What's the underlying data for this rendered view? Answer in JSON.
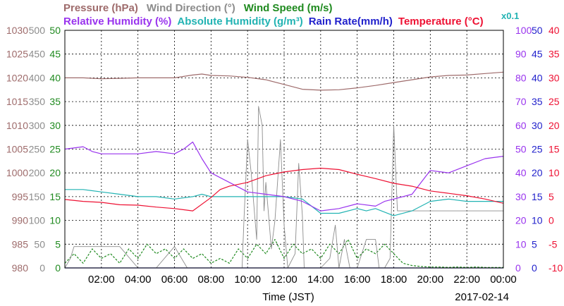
{
  "chart_data": {
    "type": "line",
    "date_label": "2017-02-14",
    "xlabel": "Time (JST)",
    "x_ticks": [
      "02:00",
      "04:00",
      "06:00",
      "08:00",
      "10:00",
      "12:00",
      "14:00",
      "16:00",
      "18:00",
      "20:00",
      "22:00",
      "00:00"
    ],
    "x_range_hours": [
      0,
      24
    ],
    "grid": true,
    "legend": {
      "row1": [
        {
          "text": "Pressure (hPa)",
          "color": "#9e6b6b"
        },
        {
          "text": "Wind Direction (°)",
          "color": "#8c8c8c"
        },
        {
          "text": "Wind Speed (m/s)",
          "color": "#1f8a1f"
        }
      ],
      "row2": [
        {
          "text": "Relative Humidity (%)",
          "color": "#9933ee"
        },
        {
          "text": "Absolute Humidity (g/m³)",
          "color": "#22b3b3"
        },
        {
          "text": "Rain Rate(mm/h)",
          "color": "#2222cc"
        },
        {
          "text": "Temperature (°C)",
          "color": "#ee1133"
        },
        {
          "text": "x0.1",
          "color": "#22b3b3"
        }
      ]
    },
    "axes": {
      "pressure": {
        "ticks": [
          "980",
          "985",
          "990",
          "995",
          "1000",
          "1005",
          "1010",
          "1015",
          "1020",
          "1025",
          "1030"
        ],
        "range": [
          980,
          1030
        ],
        "color": "#9e6b6b"
      },
      "wind_direction": {
        "ticks": [
          "0",
          "50",
          "100",
          "150",
          "200",
          "250",
          "300",
          "350",
          "400",
          "450",
          "500"
        ],
        "range": [
          0,
          500
        ],
        "color": "#8c8c8c"
      },
      "wind_speed": {
        "ticks": [
          "0",
          "5",
          "10",
          "15",
          "20",
          "25",
          "30",
          "35",
          "40",
          "45",
          "50"
        ],
        "range": [
          0,
          50
        ],
        "color": "#1f8a1f"
      },
      "humidity": {
        "ticks": [
          "0",
          "10",
          "20",
          "30",
          "40",
          "50",
          "60",
          "70",
          "80",
          "90",
          "100"
        ],
        "range": [
          0,
          100
        ],
        "color": "#9933ee"
      },
      "rain_rate": {
        "ticks": [
          "0",
          "5",
          "10",
          "15",
          "20",
          "25",
          "30",
          "35",
          "40",
          "45",
          "50"
        ],
        "range": [
          0,
          50
        ],
        "color": "#2222cc"
      },
      "temperature": {
        "ticks": [
          "-10",
          "-5",
          "0",
          "5",
          "10",
          "15",
          "20",
          "25",
          "30",
          "35",
          "40"
        ],
        "range": [
          -10,
          40
        ],
        "color": "#ee1133"
      }
    },
    "series": [
      {
        "name": "Pressure (hPa)",
        "axis": "pressure",
        "color": "#9e6b6b",
        "dashed": false,
        "x": [
          0,
          1,
          2,
          3,
          4,
          5,
          6,
          7,
          7.5,
          8,
          9,
          10,
          11,
          12,
          13,
          14,
          15,
          16,
          17,
          18,
          19,
          20,
          21,
          22,
          23,
          24
        ],
        "values": [
          1020,
          1020,
          1019.8,
          1019.9,
          1020,
          1020,
          1020,
          1020.6,
          1020.8,
          1020.5,
          1020.4,
          1020.1,
          1019.6,
          1018.6,
          1017.6,
          1017.4,
          1017.5,
          1017.9,
          1018.4,
          1019,
          1019.6,
          1020.2,
          1020.5,
          1020.6,
          1020.9,
          1021.2
        ]
      },
      {
        "name": "Relative Humidity (%)",
        "axis": "humidity",
        "color": "#9933ee",
        "dashed": false,
        "x": [
          0,
          1,
          1.5,
          2,
          3,
          4,
          5,
          6,
          6.5,
          7,
          7.5,
          8,
          9,
          10,
          11,
          12,
          13,
          14,
          15,
          16,
          17,
          17.5,
          18,
          19,
          20,
          21,
          22,
          23,
          24
        ],
        "values": [
          50,
          51,
          49,
          48,
          48,
          48,
          49,
          48,
          50,
          53,
          46,
          40,
          36,
          32,
          31,
          30,
          28,
          24,
          25,
          27,
          26,
          28,
          29,
          31,
          41,
          40,
          43,
          46,
          47
        ]
      },
      {
        "name": "Absolute Humidity (g/m³)",
        "axis": "humidity",
        "color": "#22b3b3",
        "dashed": false,
        "x": [
          0,
          1,
          2,
          3,
          4,
          5,
          6,
          7,
          7.5,
          8,
          9,
          10,
          11,
          12,
          13,
          13.5,
          14,
          15,
          16,
          16.5,
          17,
          18,
          19,
          20,
          21,
          22,
          23,
          24
        ],
        "values": [
          33,
          33,
          32,
          31,
          30,
          30,
          29,
          30,
          31,
          30,
          30,
          30,
          30,
          30,
          29,
          26,
          23,
          23,
          25,
          24,
          25,
          22,
          24,
          28,
          29,
          28,
          28,
          28
        ]
      },
      {
        "name": "Temperature (°C)",
        "axis": "temperature",
        "color": "#ee1133",
        "dashed": false,
        "x": [
          0,
          1,
          2,
          3,
          4,
          5,
          6,
          7,
          8,
          8.5,
          9,
          10,
          11,
          12,
          13,
          14,
          15,
          16,
          17,
          18,
          19,
          20,
          21,
          22,
          23,
          24
        ],
        "values": [
          4.4,
          4,
          3.8,
          3.3,
          3.2,
          2.8,
          2.5,
          2,
          4.8,
          6.5,
          7.2,
          8,
          9.4,
          10.2,
          10.7,
          11,
          10.7,
          9.7,
          8.8,
          7.8,
          7.2,
          6.2,
          5.7,
          5.2,
          4.5,
          3.6
        ]
      },
      {
        "name": "Wind Direction (°)",
        "axis": "wind_direction",
        "color": "#8c8c8c",
        "dashed": false,
        "x": [
          0,
          0.3,
          0.5,
          2,
          3,
          4,
          5,
          6,
          6.7,
          7,
          9.7,
          9.8,
          10,
          10.2,
          10.5,
          10.6,
          10.8,
          10.9,
          11,
          11.3,
          11.5,
          11.8,
          12,
          12.2,
          12.6,
          12.8,
          13,
          13.1,
          14,
          14.5,
          14.8,
          15,
          15.3,
          15.6,
          16,
          16.5,
          17,
          17.2,
          17.5,
          17.8,
          18,
          18.2,
          18.4,
          24
        ],
        "values": [
          0,
          20,
          45,
          45,
          45,
          0,
          0,
          45,
          0,
          0,
          0,
          100,
          270,
          200,
          60,
          340,
          300,
          120,
          180,
          40,
          100,
          270,
          90,
          0,
          30,
          220,
          110,
          0,
          0,
          20,
          90,
          0,
          60,
          0,
          0,
          60,
          60,
          0,
          0,
          20,
          300,
          120,
          120,
          120
        ]
      },
      {
        "name": "Wind Speed (m/s)",
        "axis": "wind_speed",
        "color": "#1f8a1f",
        "dashed": true,
        "x": [
          0,
          0.5,
          1,
          1.5,
          2,
          2.5,
          3,
          3.5,
          4,
          4.5,
          5,
          5.5,
          6,
          6.5,
          7,
          7.5,
          8,
          8.5,
          9,
          9.5,
          10,
          10.5,
          11,
          11.5,
          12,
          12.5,
          13,
          13.5,
          14,
          14.5,
          15,
          15.5,
          16,
          16.5,
          17,
          17.5,
          18,
          18.5,
          19,
          19.5,
          20,
          20.5,
          21,
          21.5,
          22,
          22.5,
          23,
          23.5,
          24
        ],
        "values": [
          1,
          3,
          1,
          4,
          2,
          3,
          1,
          4,
          2,
          5,
          3,
          4,
          2,
          4,
          2,
          3,
          1,
          2,
          1,
          4,
          2,
          5,
          3,
          6,
          2,
          5,
          3,
          4,
          2,
          5,
          3,
          6,
          2,
          4,
          3,
          5,
          3,
          1,
          0.5,
          0.3,
          0.2,
          0.2,
          0.1,
          0.2,
          0.1,
          0.2,
          0.1,
          0.1,
          0.1
        ]
      },
      {
        "name": "Rain Rate(mm/h)",
        "axis": "rain_rate",
        "color": "#2222cc",
        "dashed": false,
        "x": [
          0,
          24
        ],
        "values": [
          0,
          0
        ]
      }
    ]
  }
}
